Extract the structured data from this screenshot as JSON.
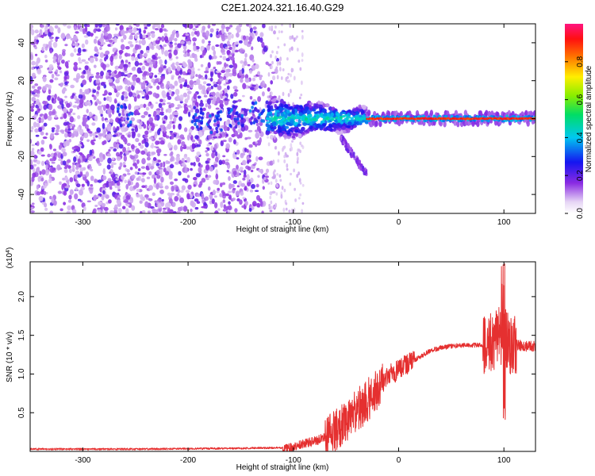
{
  "title": "C2E1.2024.321.16.40.G29",
  "colors": {
    "snr_line": "#e53030",
    "axis": "#000000"
  },
  "chart_data": [
    {
      "type": "heatmap",
      "xlabel": "Height of straight line (km)",
      "ylabel": "Frequency (Hz)",
      "xlim": [
        -350,
        130
      ],
      "ylim": [
        -50,
        50
      ],
      "xticks": [
        -300,
        -200,
        -100,
        0,
        100
      ],
      "yticks": [
        -40,
        -20,
        0,
        20,
        40
      ],
      "xtick_labels": [
        "-300",
        "-200",
        "-100",
        "0",
        "100"
      ],
      "ytick_labels": [
        "-40",
        "-20",
        "0",
        "20",
        "40"
      ],
      "colorbar": {
        "label": "Normalized spectral amplitude",
        "range": [
          0,
          1
        ],
        "ticks": [
          0.0,
          0.2,
          0.4,
          0.6,
          0.8
        ],
        "tick_labels": [
          "0.0",
          "0.2",
          "0.4",
          "0.6",
          "0.8"
        ],
        "colormap": "rainbow (white→violet→blue→cyan→green→yellow→red→magenta)"
      },
      "features": [
        {
          "region": "noise",
          "x_range": [
            -350,
            -125
          ],
          "freq_range": [
            -50,
            50
          ],
          "amplitude": 0.1
        },
        {
          "region": "transition",
          "x_range": [
            -125,
            -30
          ],
          "freq_center": 0,
          "freq_width": 10,
          "amplitude": 0.4
        },
        {
          "region": "branch",
          "x_range": [
            -55,
            -30
          ],
          "freq_start": -10,
          "freq_end": -30,
          "amplitude": 0.1
        },
        {
          "region": "carrier",
          "x_range": [
            -30,
            130
          ],
          "freq_center": 0,
          "freq_width": 3,
          "amplitude": 0.9
        }
      ]
    },
    {
      "type": "line",
      "xlabel": "Height of straight line (km)",
      "ylabel": "SNR (10 * v/v)",
      "y_multiplier_label": "(x10",
      "y_multiplier_exp": "4",
      "y_multiplier_close": ")",
      "xlim": [
        -350,
        130
      ],
      "ylim": [
        0,
        2.45
      ],
      "xticks": [
        -300,
        -200,
        -100,
        0,
        100
      ],
      "yticks": [
        0.5,
        1.0,
        1.5,
        2.0
      ],
      "xtick_labels": [
        "-300",
        "-200",
        "-100",
        "0",
        "100"
      ],
      "ytick_labels": [
        "0.5",
        "1.0",
        "1.5",
        "2.0"
      ],
      "series": [
        {
          "x": [
            -350,
            -250,
            -150,
            -100,
            -90,
            -80,
            -70,
            -60,
            -50,
            -40,
            -30,
            -20,
            -15,
            -10,
            0,
            10,
            20,
            30,
            40,
            50,
            60,
            70,
            80,
            90,
            95,
            100,
            105,
            110,
            120,
            130
          ],
          "y": [
            0.03,
            0.03,
            0.04,
            0.05,
            0.1,
            0.13,
            0.18,
            0.26,
            0.38,
            0.52,
            0.66,
            0.8,
            0.9,
            0.98,
            1.05,
            1.14,
            1.22,
            1.3,
            1.34,
            1.36,
            1.37,
            1.37,
            1.38,
            1.4,
            1.5,
            1.45,
            1.4,
            1.38,
            1.36,
            1.36
          ]
        }
      ]
    }
  ]
}
